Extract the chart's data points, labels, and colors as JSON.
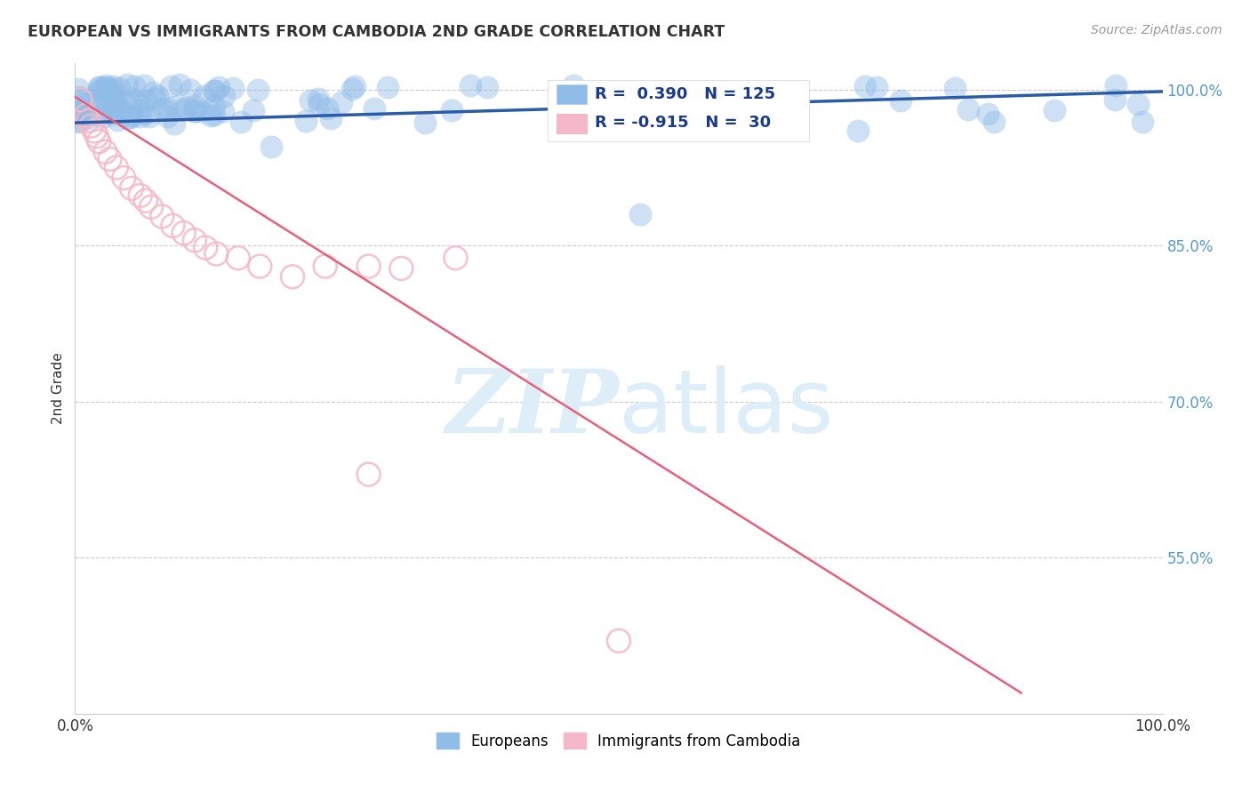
{
  "title": "EUROPEAN VS IMMIGRANTS FROM CAMBODIA 2ND GRADE CORRELATION CHART",
  "source": "Source: ZipAtlas.com",
  "ylabel": "2nd Grade",
  "xlim": [
    0,
    1
  ],
  "ylim": [
    0.4,
    1.025
  ],
  "yticks": [
    0.55,
    0.7,
    0.85,
    1.0
  ],
  "ytick_labels": [
    "55.0%",
    "70.0%",
    "85.0%",
    "100.0%"
  ],
  "blue_R": 0.39,
  "blue_N": 125,
  "pink_R": -0.915,
  "pink_N": 30,
  "blue_color": "#90bce8",
  "blue_edge_color": "#90bce8",
  "pink_color": "#f5b8c8",
  "pink_edge_color": "#f5b8c8",
  "blue_line_color": "#2b5ca8",
  "pink_line_color": "#e8607a",
  "legend_label_blue": "Europeans",
  "legend_label_pink": "Immigrants from Cambodia",
  "watermark_zip": "ZIP",
  "watermark_atlas": "atlas",
  "watermark_color": "#ddeef8",
  "background_color": "#ffffff",
  "grid_color": "#cccccc",
  "title_color": "#333333",
  "source_color": "#999999",
  "ytick_color": "#5599cc",
  "legend_text_color": "#1a3a8a",
  "legend_pink_text_color": "#1a3a8a"
}
